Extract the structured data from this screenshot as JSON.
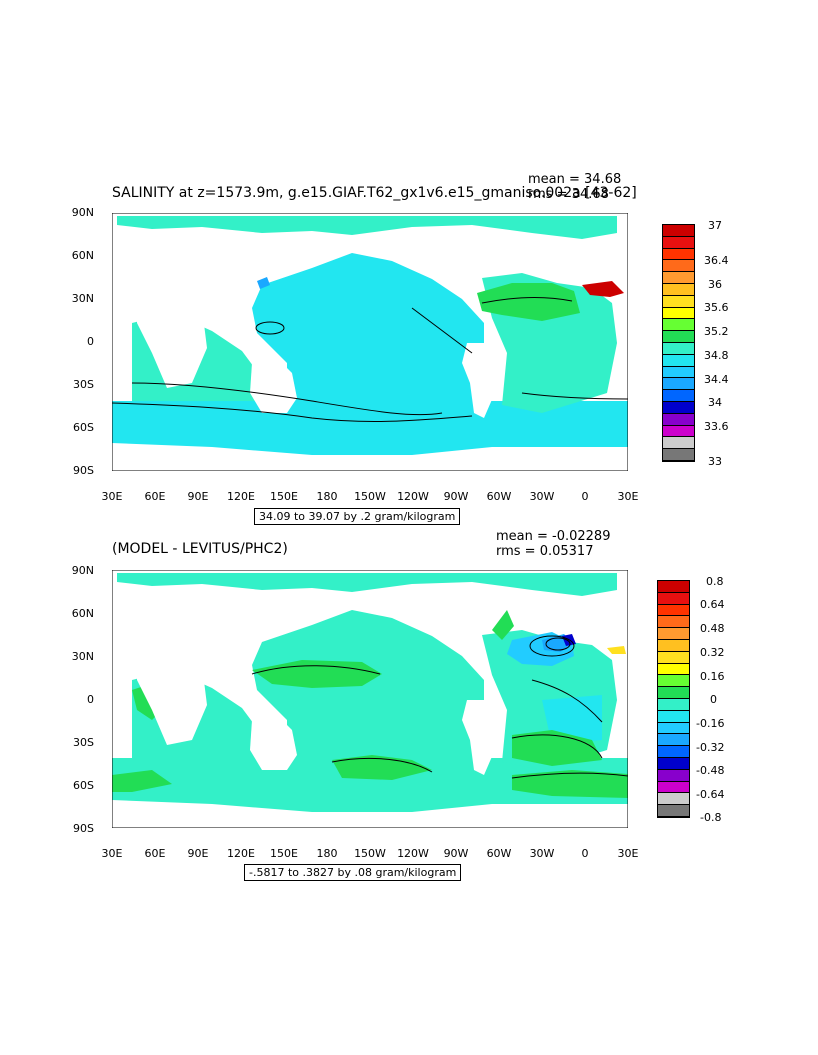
{
  "panel1": {
    "title": "SALINITY at z=1573.9m, g.e15.GIAF.T62_gx1v6.e15_gmaniso.002a [43-62]",
    "mean_label": "mean = 34.68",
    "rms_label": "rms = 34.68",
    "range_label": "34.09 to 39.07 by .2 gram/kilogram",
    "colorbar_labels": [
      "37",
      "36.4",
      "36",
      "35.6",
      "35.2",
      "34.8",
      "34.4",
      "34",
      "33.6",
      "33"
    ],
    "colorbar_colors": [
      "#cc0000",
      "#e81010",
      "#ff3300",
      "#ff6a1a",
      "#ff9a30",
      "#ffc020",
      "#ffe020",
      "#ffff00",
      "#66ff33",
      "#22dd55",
      "#33f0c8",
      "#22e6f0",
      "#22ccff",
      "#1aa8ff",
      "#0066ff",
      "#0000cc",
      "#8800cc",
      "#cc00cc",
      "#cccccc",
      "#777777"
    ]
  },
  "panel2": {
    "title": "(MODEL - LEVITUS/PHC2)",
    "mean_label": "mean = -0.02289",
    "rms_label": "rms = 0.05317",
    "range_label": "-.5817 to .3827 by .08 gram/kilogram",
    "colorbar_labels": [
      "0.8",
      "0.64",
      "0.48",
      "0.32",
      "0.16",
      "0",
      "-0.16",
      "-0.32",
      "-0.48",
      "-0.64",
      "-0.8"
    ],
    "colorbar_colors": [
      "#cc0000",
      "#e81010",
      "#ff3300",
      "#ff6a1a",
      "#ff9a30",
      "#ffc020",
      "#ffe020",
      "#ffff00",
      "#66ff33",
      "#22dd55",
      "#33f0c8",
      "#22e6f0",
      "#22ccff",
      "#1aa8ff",
      "#0066ff",
      "#0000cc",
      "#8800cc",
      "#cc00cc",
      "#cccccc",
      "#777777"
    ]
  },
  "axes": {
    "lat_labels": [
      "90N",
      "60N",
      "30N",
      "0",
      "30S",
      "60S",
      "90S"
    ],
    "lon_labels": [
      "30E",
      "60E",
      "90E",
      "120E",
      "150E",
      "180",
      "150W",
      "120W",
      "90W",
      "60W",
      "30W",
      "0",
      "30E"
    ]
  }
}
